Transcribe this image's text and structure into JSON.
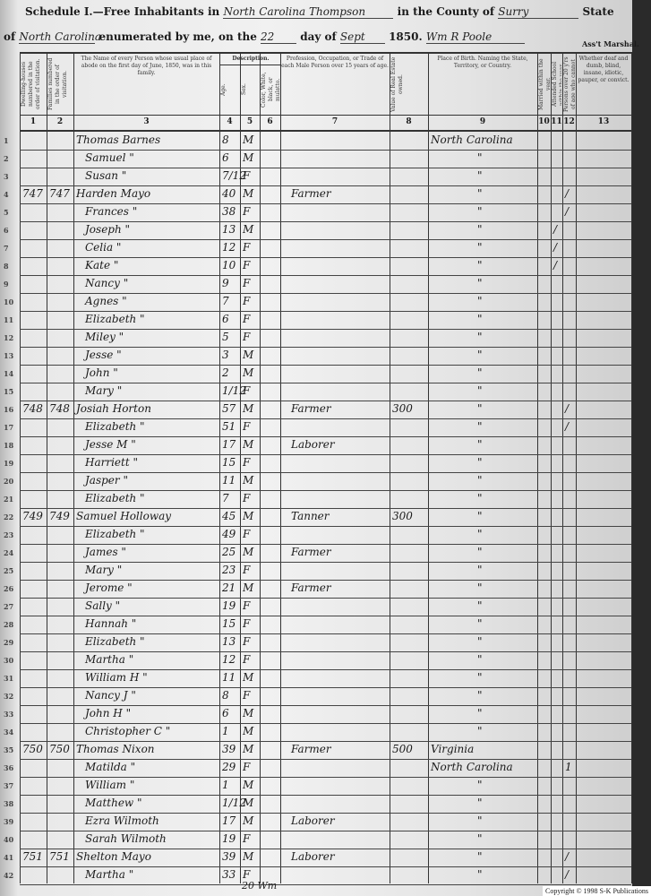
{
  "header": {
    "schedule_label": "Schedule I.—Free Inhabitants in",
    "subdivision": "North Carolina Thompson",
    "county_label": "in the County of",
    "county": "Surry",
    "state_label": "State",
    "of_label": "of",
    "state": "North Carolina",
    "enumerated_label": "enumerated by me, on the",
    "day": "22",
    "day_label": "day of",
    "month": "Sept",
    "year": "1850.",
    "marshal_signature": "Wm R Poole",
    "marshal_label": "Ass't Marshal."
  },
  "columns": [
    {
      "num": "1",
      "label": "Dwelling-houses numbered in the order of visitation."
    },
    {
      "num": "2",
      "label": "Families numbered in the order of visitation."
    },
    {
      "num": "3",
      "label": "The Name of every Person whose usual place of abode on the first day of June, 1850, was in this family."
    },
    {
      "num": "4",
      "label": "Age."
    },
    {
      "num": "5",
      "label": "Sex."
    },
    {
      "num": "6",
      "label": "Color, White, black, or mulatto."
    },
    {
      "num": "7",
      "label": "Profession, Occupation, or Trade of each Male Person over 15 years of age."
    },
    {
      "num": "8",
      "label": "Value of Real Estate owned."
    },
    {
      "num": "9",
      "label": "Place of Birth. Naming the State, Territory, or Country."
    },
    {
      "num": "10",
      "label": "Married within the year."
    },
    {
      "num": "11",
      "label": "Attended School within the year."
    },
    {
      "num": "12",
      "label": "Persons over 20 y'rs of age who cannot read & write."
    },
    {
      "num": "13",
      "label": "Whether deaf and dumb, blind, insane, idiotic, pauper, or convict."
    }
  ],
  "description_label": "Description.",
  "rows": [
    {
      "n": "1",
      "d": "",
      "f": "",
      "name": "Thomas Barnes",
      "age": "8",
      "sex": "M",
      "occ": "",
      "val": "",
      "birth": "North Carolina",
      "c11": "",
      "c12": ""
    },
    {
      "n": "2",
      "d": "",
      "f": "",
      "name": "Samuel  \"",
      "age": "6",
      "sex": "M",
      "occ": "",
      "val": "",
      "birth": "\"",
      "c11": "",
      "c12": ""
    },
    {
      "n": "3",
      "d": "",
      "f": "",
      "name": "Susan  \"",
      "age": "7/12",
      "sex": "F",
      "occ": "",
      "val": "",
      "birth": "\"",
      "c11": "",
      "c12": ""
    },
    {
      "n": "4",
      "d": "747",
      "f": "747",
      "name": "Harden Mayo",
      "age": "40",
      "sex": "M",
      "occ": "Farmer",
      "val": "",
      "birth": "\"",
      "c11": "",
      "c12": "/"
    },
    {
      "n": "5",
      "d": "",
      "f": "",
      "name": "Frances  \"",
      "age": "38",
      "sex": "F",
      "occ": "",
      "val": "",
      "birth": "\"",
      "c11": "",
      "c12": "/"
    },
    {
      "n": "6",
      "d": "",
      "f": "",
      "name": "Joseph  \"",
      "age": "13",
      "sex": "M",
      "occ": "",
      "val": "",
      "birth": "\"",
      "c11": "/",
      "c12": ""
    },
    {
      "n": "7",
      "d": "",
      "f": "",
      "name": "Celia  \"",
      "age": "12",
      "sex": "F",
      "occ": "",
      "val": "",
      "birth": "\"",
      "c11": "/",
      "c12": ""
    },
    {
      "n": "8",
      "d": "",
      "f": "",
      "name": "Kate  \"",
      "age": "10",
      "sex": "F",
      "occ": "",
      "val": "",
      "birth": "\"",
      "c11": "/",
      "c12": ""
    },
    {
      "n": "9",
      "d": "",
      "f": "",
      "name": "Nancy  \"",
      "age": "9",
      "sex": "F",
      "occ": "",
      "val": "",
      "birth": "\"",
      "c11": "",
      "c12": ""
    },
    {
      "n": "10",
      "d": "",
      "f": "",
      "name": "Agnes  \"",
      "age": "7",
      "sex": "F",
      "occ": "",
      "val": "",
      "birth": "\"",
      "c11": "",
      "c12": ""
    },
    {
      "n": "11",
      "d": "",
      "f": "",
      "name": "Elizabeth  \"",
      "age": "6",
      "sex": "F",
      "occ": "",
      "val": "",
      "birth": "\"",
      "c11": "",
      "c12": ""
    },
    {
      "n": "12",
      "d": "",
      "f": "",
      "name": "Miley  \"",
      "age": "5",
      "sex": "F",
      "occ": "",
      "val": "",
      "birth": "\"",
      "c11": "",
      "c12": ""
    },
    {
      "n": "13",
      "d": "",
      "f": "",
      "name": "Jesse  \"",
      "age": "3",
      "sex": "M",
      "occ": "",
      "val": "",
      "birth": "\"",
      "c11": "",
      "c12": ""
    },
    {
      "n": "14",
      "d": "",
      "f": "",
      "name": "John  \"",
      "age": "2",
      "sex": "M",
      "occ": "",
      "val": "",
      "birth": "\"",
      "c11": "",
      "c12": ""
    },
    {
      "n": "15",
      "d": "",
      "f": "",
      "name": "Mary  \"",
      "age": "1/12",
      "sex": "F",
      "occ": "",
      "val": "",
      "birth": "\"",
      "c11": "",
      "c12": ""
    },
    {
      "n": "16",
      "d": "748",
      "f": "748",
      "name": "Josiah Horton",
      "age": "57",
      "sex": "M",
      "occ": "Farmer",
      "val": "300",
      "birth": "\"",
      "c11": "",
      "c12": "/"
    },
    {
      "n": "17",
      "d": "",
      "f": "",
      "name": "Elizabeth  \"",
      "age": "51",
      "sex": "F",
      "occ": "",
      "val": "",
      "birth": "\"",
      "c11": "",
      "c12": "/"
    },
    {
      "n": "18",
      "d": "",
      "f": "",
      "name": "Jesse M  \"",
      "age": "17",
      "sex": "M",
      "occ": "Laborer",
      "val": "",
      "birth": "\"",
      "c11": "",
      "c12": ""
    },
    {
      "n": "19",
      "d": "",
      "f": "",
      "name": "Harriett  \"",
      "age": "15",
      "sex": "F",
      "occ": "",
      "val": "",
      "birth": "\"",
      "c11": "",
      "c12": ""
    },
    {
      "n": "20",
      "d": "",
      "f": "",
      "name": "Jasper  \"",
      "age": "11",
      "sex": "M",
      "occ": "",
      "val": "",
      "birth": "\"",
      "c11": "",
      "c12": ""
    },
    {
      "n": "21",
      "d": "",
      "f": "",
      "name": "Elizabeth  \"",
      "age": "7",
      "sex": "F",
      "occ": "",
      "val": "",
      "birth": "\"",
      "c11": "",
      "c12": ""
    },
    {
      "n": "22",
      "d": "749",
      "f": "749",
      "name": "Samuel Holloway",
      "age": "45",
      "sex": "M",
      "occ": "Tanner",
      "val": "300",
      "birth": "\"",
      "c11": "",
      "c12": ""
    },
    {
      "n": "23",
      "d": "",
      "f": "",
      "name": "Elizabeth  \"",
      "age": "49",
      "sex": "F",
      "occ": "",
      "val": "",
      "birth": "\"",
      "c11": "",
      "c12": ""
    },
    {
      "n": "24",
      "d": "",
      "f": "",
      "name": "James  \"",
      "age": "25",
      "sex": "M",
      "occ": "Farmer",
      "val": "",
      "birth": "\"",
      "c11": "",
      "c12": ""
    },
    {
      "n": "25",
      "d": "",
      "f": "",
      "name": "Mary  \"",
      "age": "23",
      "sex": "F",
      "occ": "",
      "val": "",
      "birth": "\"",
      "c11": "",
      "c12": ""
    },
    {
      "n": "26",
      "d": "",
      "f": "",
      "name": "Jerome  \"",
      "age": "21",
      "sex": "M",
      "occ": "Farmer",
      "val": "",
      "birth": "\"",
      "c11": "",
      "c12": ""
    },
    {
      "n": "27",
      "d": "",
      "f": "",
      "name": "Sally  \"",
      "age": "19",
      "sex": "F",
      "occ": "",
      "val": "",
      "birth": "\"",
      "c11": "",
      "c12": ""
    },
    {
      "n": "28",
      "d": "",
      "f": "",
      "name": "Hannah  \"",
      "age": "15",
      "sex": "F",
      "occ": "",
      "val": "",
      "birth": "\"",
      "c11": "",
      "c12": ""
    },
    {
      "n": "29",
      "d": "",
      "f": "",
      "name": "Elizabeth  \"",
      "age": "13",
      "sex": "F",
      "occ": "",
      "val": "",
      "birth": "\"",
      "c11": "",
      "c12": ""
    },
    {
      "n": "30",
      "d": "",
      "f": "",
      "name": "Martha  \"",
      "age": "12",
      "sex": "F",
      "occ": "",
      "val": "",
      "birth": "\"",
      "c11": "",
      "c12": ""
    },
    {
      "n": "31",
      "d": "",
      "f": "",
      "name": "William H  \"",
      "age": "11",
      "sex": "M",
      "occ": "",
      "val": "",
      "birth": "\"",
      "c11": "",
      "c12": ""
    },
    {
      "n": "32",
      "d": "",
      "f": "",
      "name": "Nancy J  \"",
      "age": "8",
      "sex": "F",
      "occ": "",
      "val": "",
      "birth": "\"",
      "c11": "",
      "c12": ""
    },
    {
      "n": "33",
      "d": "",
      "f": "",
      "name": "John H  \"",
      "age": "6",
      "sex": "M",
      "occ": "",
      "val": "",
      "birth": "\"",
      "c11": "",
      "c12": ""
    },
    {
      "n": "34",
      "d": "",
      "f": "",
      "name": "Christopher C  \"",
      "age": "1",
      "sex": "M",
      "occ": "",
      "val": "",
      "birth": "\"",
      "c11": "",
      "c12": ""
    },
    {
      "n": "35",
      "d": "750",
      "f": "750",
      "name": "Thomas Nixon",
      "age": "39",
      "sex": "M",
      "occ": "Farmer",
      "val": "500",
      "birth": "Virginia",
      "c11": "",
      "c12": ""
    },
    {
      "n": "36",
      "d": "",
      "f": "",
      "name": "Matilda  \"",
      "age": "29",
      "sex": "F",
      "occ": "",
      "val": "",
      "birth": "North Carolina",
      "c11": "",
      "c12": "1"
    },
    {
      "n": "37",
      "d": "",
      "f": "",
      "name": "William  \"",
      "age": "1",
      "sex": "M",
      "occ": "",
      "val": "",
      "birth": "\"",
      "c11": "",
      "c12": ""
    },
    {
      "n": "38",
      "d": "",
      "f": "",
      "name": "Matthew  \"",
      "age": "1/12",
      "sex": "M",
      "occ": "",
      "val": "",
      "birth": "\"",
      "c11": "",
      "c12": ""
    },
    {
      "n": "39",
      "d": "",
      "f": "",
      "name": "Ezra Wilmoth",
      "age": "17",
      "sex": "M",
      "occ": "Laborer",
      "val": "",
      "birth": "\"",
      "c11": "",
      "c12": ""
    },
    {
      "n": "40",
      "d": "",
      "f": "",
      "name": "Sarah Wilmoth",
      "age": "19",
      "sex": "F",
      "occ": "",
      "val": "",
      "birth": "\"",
      "c11": "",
      "c12": ""
    },
    {
      "n": "41",
      "d": "751",
      "f": "751",
      "name": "Shelton Mayo",
      "age": "39",
      "sex": "M",
      "occ": "Laborer",
      "val": "",
      "birth": "\"",
      "c11": "",
      "c12": "/"
    },
    {
      "n": "42",
      "d": "",
      "f": "",
      "name": "Martha  \"",
      "age": "33",
      "sex": "F",
      "occ": "",
      "val": "",
      "birth": "\"",
      "c11": "",
      "c12": "/"
    }
  ],
  "footer_note": "20 Wm",
  "copyright": "Copyright © 1998 S-K Publications"
}
